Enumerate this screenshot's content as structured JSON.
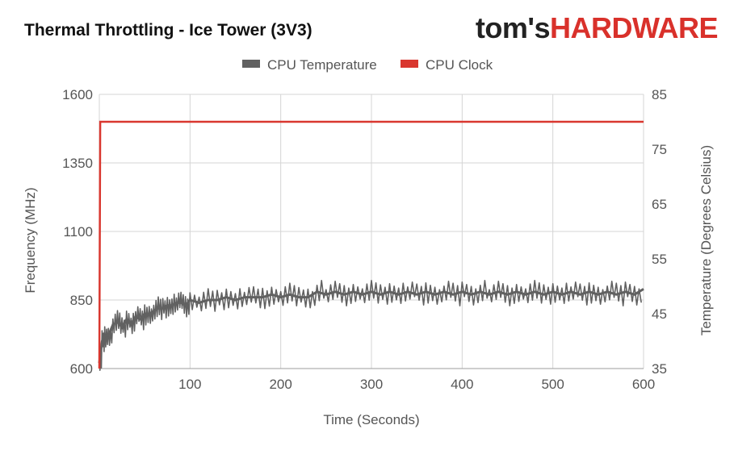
{
  "chart_data": {
    "type": "line",
    "title": "Thermal Throttling - Ice Tower (3V3)",
    "xlabel": "Time (Seconds)",
    "ylabel_left": "Frequency (MHz)",
    "ylabel_right": "Temperature (Degrees Celsius)",
    "xlim": [
      0,
      600
    ],
    "ylim_left": [
      600,
      1600
    ],
    "ylim_right": [
      35,
      85
    ],
    "x_ticks": [
      100,
      200,
      300,
      400,
      500,
      600
    ],
    "y_ticks_left": [
      600,
      850,
      1100,
      1350,
      1600
    ],
    "y_ticks_right": [
      35,
      45,
      55,
      65,
      75,
      85
    ],
    "grid": true,
    "legend_position": "top",
    "series": [
      {
        "name": "CPU Temperature",
        "axis": "right",
        "color": "#616161",
        "x": [
          0,
          3,
          6,
          10,
          15,
          20,
          25,
          30,
          35,
          40,
          45,
          50,
          55,
          60,
          65,
          70,
          75,
          80,
          85,
          90,
          95,
          100,
          110,
          120,
          130,
          140,
          150,
          160,
          170,
          180,
          190,
          200,
          210,
          220,
          230,
          240,
          250,
          260,
          270,
          280,
          290,
          300,
          310,
          320,
          330,
          340,
          350,
          360,
          370,
          380,
          390,
          400,
          410,
          420,
          430,
          440,
          450,
          460,
          470,
          480,
          490,
          500,
          510,
          520,
          530,
          540,
          550,
          560,
          570,
          580,
          590,
          600
        ],
        "values": [
          36,
          40,
          41,
          41,
          43,
          43.5,
          42.5,
          44,
          43,
          44.5,
          44,
          45,
          45,
          45.5,
          46,
          46,
          46.5,
          46.5,
          47,
          47,
          46.5,
          47.5,
          47,
          47.5,
          47.5,
          48,
          47.5,
          48,
          48,
          48,
          48.5,
          48,
          48.5,
          48,
          48,
          49,
          48.5,
          49,
          48.5,
          49,
          48.5,
          49,
          48.5,
          49,
          48.5,
          49,
          48.5,
          49,
          48.5,
          49,
          48.5,
          49,
          48.5,
          49,
          48.5,
          49,
          48.5,
          49,
          48.5,
          49,
          48.5,
          49,
          48.5,
          49,
          48.5,
          49,
          48.5,
          49,
          48.5,
          49,
          48.5,
          49.5
        ]
      },
      {
        "name": "CPU Clock",
        "axis": "left",
        "color": "#d9372f",
        "x": [
          0,
          1,
          600
        ],
        "values": [
          600,
          1500,
          1500
        ]
      }
    ]
  },
  "logo": {
    "part1": "tom's",
    "part2": "HARDWARE"
  }
}
